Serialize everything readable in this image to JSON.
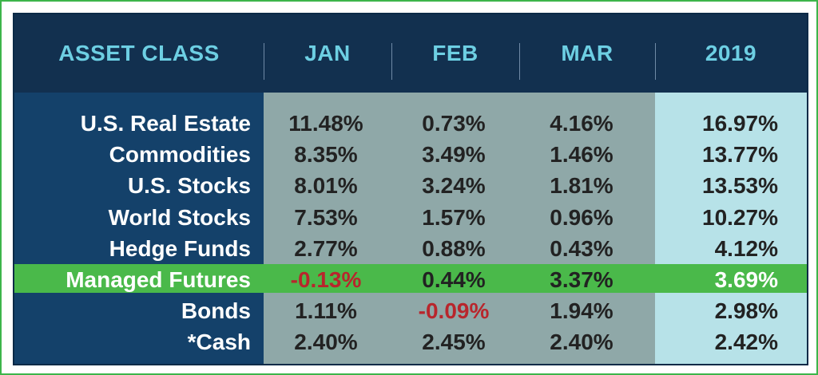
{
  "chart_data": {
    "type": "table",
    "columns": [
      "ASSET CLASS",
      "JAN",
      "FEB",
      "MAR",
      "2019"
    ],
    "rows": [
      {
        "label": "U.S. Real Estate",
        "values": [
          "11.48%",
          "0.73%",
          "4.16%",
          "16.97%"
        ]
      },
      {
        "label": "Commodities",
        "values": [
          "8.35%",
          "3.49%",
          "1.46%",
          "13.77%"
        ]
      },
      {
        "label": "U.S. Stocks",
        "values": [
          "8.01%",
          "3.24%",
          "1.81%",
          "13.53%"
        ]
      },
      {
        "label": "World Stocks",
        "values": [
          "7.53%",
          "1.57%",
          "0.96%",
          "10.27%"
        ]
      },
      {
        "label": "Hedge Funds",
        "values": [
          "2.77%",
          "0.88%",
          "0.43%",
          "4.12%"
        ]
      },
      {
        "label": "Managed Futures",
        "values": [
          "-0.13%",
          "0.44%",
          "3.37%",
          "3.69%"
        ],
        "highlighted": true
      },
      {
        "label": "Bonds",
        "values": [
          "1.11%",
          "-0.09%",
          "1.94%",
          "2.98%"
        ]
      },
      {
        "label": "*Cash",
        "values": [
          "2.40%",
          "2.45%",
          "2.40%",
          "2.42%"
        ]
      }
    ],
    "colors": {
      "header_bg": "#12304f",
      "header_text": "#6dcfe3",
      "label_bg": "#14416a",
      "month_bg": "#8fa8a8",
      "year_bg": "#b7e2e8",
      "highlight": "#4ab94a",
      "negative_text": "#b8262c",
      "border": "#3db54a"
    }
  }
}
